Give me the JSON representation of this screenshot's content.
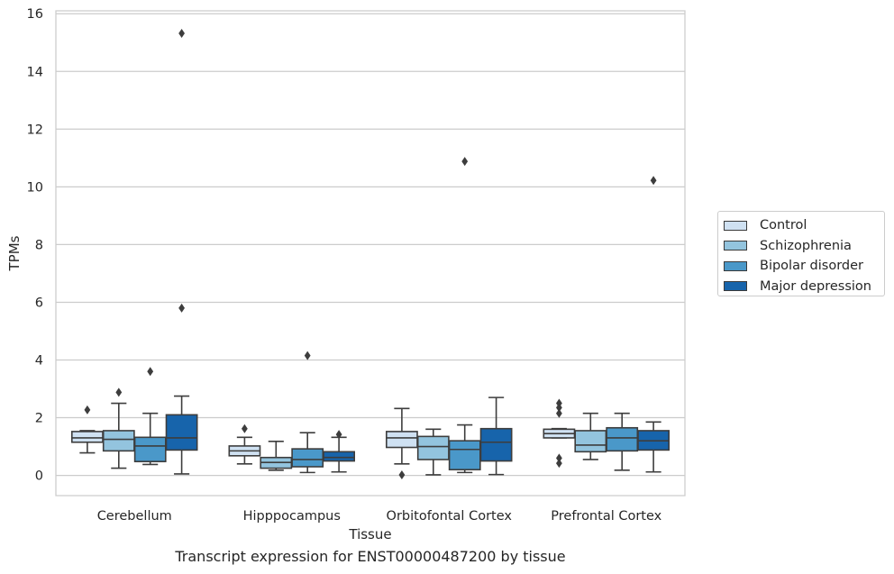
{
  "chart_data": {
    "type": "box",
    "title": "",
    "xlabel": "Tissue",
    "ylabel": "TPMs",
    "caption": "Transcript expression for ENST00000487200 by tissue",
    "ylim": [
      -0.7,
      16.1
    ],
    "yticks": [
      0,
      2,
      4,
      6,
      8,
      10,
      12,
      14,
      16
    ],
    "grid": "horizontal",
    "legend_position": "right",
    "categories": [
      "Cerebellum",
      "Hipppocampus",
      "Orbitofontal Cortex",
      "Prefrontal Cortex"
    ],
    "series": [
      {
        "name": "Control",
        "color": "#cfe1f2",
        "boxes": [
          {
            "whislo": 0.78,
            "q1": 1.15,
            "med": 1.3,
            "q3": 1.52,
            "whishi": 1.55,
            "fliers": [
              2.27
            ]
          },
          {
            "whislo": 0.4,
            "q1": 0.68,
            "med": 0.85,
            "q3": 1.02,
            "whishi": 1.32,
            "fliers": [
              1.62
            ]
          },
          {
            "whislo": 0.4,
            "q1": 0.97,
            "med": 1.3,
            "q3": 1.52,
            "whishi": 2.32,
            "fliers": [
              0.02
            ]
          },
          {
            "whislo": 1.3,
            "q1": 1.3,
            "med": 1.45,
            "q3": 1.6,
            "whishi": 1.62,
            "fliers": [
              2.5,
              2.35,
              2.15,
              0.6,
              0.42
            ]
          }
        ]
      },
      {
        "name": "Schizophrenia",
        "color": "#93c4de",
        "boxes": [
          {
            "whislo": 0.25,
            "q1": 0.85,
            "med": 1.25,
            "q3": 1.55,
            "whishi": 2.5,
            "fliers": [
              2.88
            ]
          },
          {
            "whislo": 0.18,
            "q1": 0.25,
            "med": 0.45,
            "q3": 0.62,
            "whishi": 1.18,
            "fliers": []
          },
          {
            "whislo": 0.02,
            "q1": 0.55,
            "med": 1.0,
            "q3": 1.35,
            "whishi": 1.6,
            "fliers": []
          },
          {
            "whislo": 0.55,
            "q1": 0.82,
            "med": 1.05,
            "q3": 1.55,
            "whishi": 2.15,
            "fliers": []
          }
        ]
      },
      {
        "name": "Bipolar disorder",
        "color": "#4a98c9",
        "boxes": [
          {
            "whislo": 0.38,
            "q1": 0.48,
            "med": 1.02,
            "q3": 1.32,
            "whishi": 2.15,
            "fliers": [
              3.6
            ]
          },
          {
            "whislo": 0.1,
            "q1": 0.3,
            "med": 0.55,
            "q3": 0.92,
            "whishi": 1.48,
            "fliers": [
              4.15
            ]
          },
          {
            "whislo": 0.1,
            "q1": 0.2,
            "med": 0.9,
            "q3": 1.2,
            "whishi": 1.75,
            "fliers": [
              10.88
            ]
          },
          {
            "whislo": 0.18,
            "q1": 0.85,
            "med": 1.3,
            "q3": 1.65,
            "whishi": 2.15,
            "fliers": []
          }
        ]
      },
      {
        "name": "Major depression",
        "color": "#1764ab",
        "boxes": [
          {
            "whislo": 0.05,
            "q1": 0.88,
            "med": 1.3,
            "q3": 2.1,
            "whishi": 2.75,
            "fliers": [
              15.32,
              5.8
            ]
          },
          {
            "whislo": 0.12,
            "q1": 0.5,
            "med": 0.62,
            "q3": 0.82,
            "whishi": 1.32,
            "fliers": [
              1.42
            ]
          },
          {
            "whislo": 0.03,
            "q1": 0.5,
            "med": 1.15,
            "q3": 1.62,
            "whishi": 2.7,
            "fliers": []
          },
          {
            "whislo": 0.12,
            "q1": 0.88,
            "med": 1.2,
            "q3": 1.55,
            "whishi": 1.85,
            "fliers": [
              10.22
            ]
          }
        ]
      }
    ]
  }
}
